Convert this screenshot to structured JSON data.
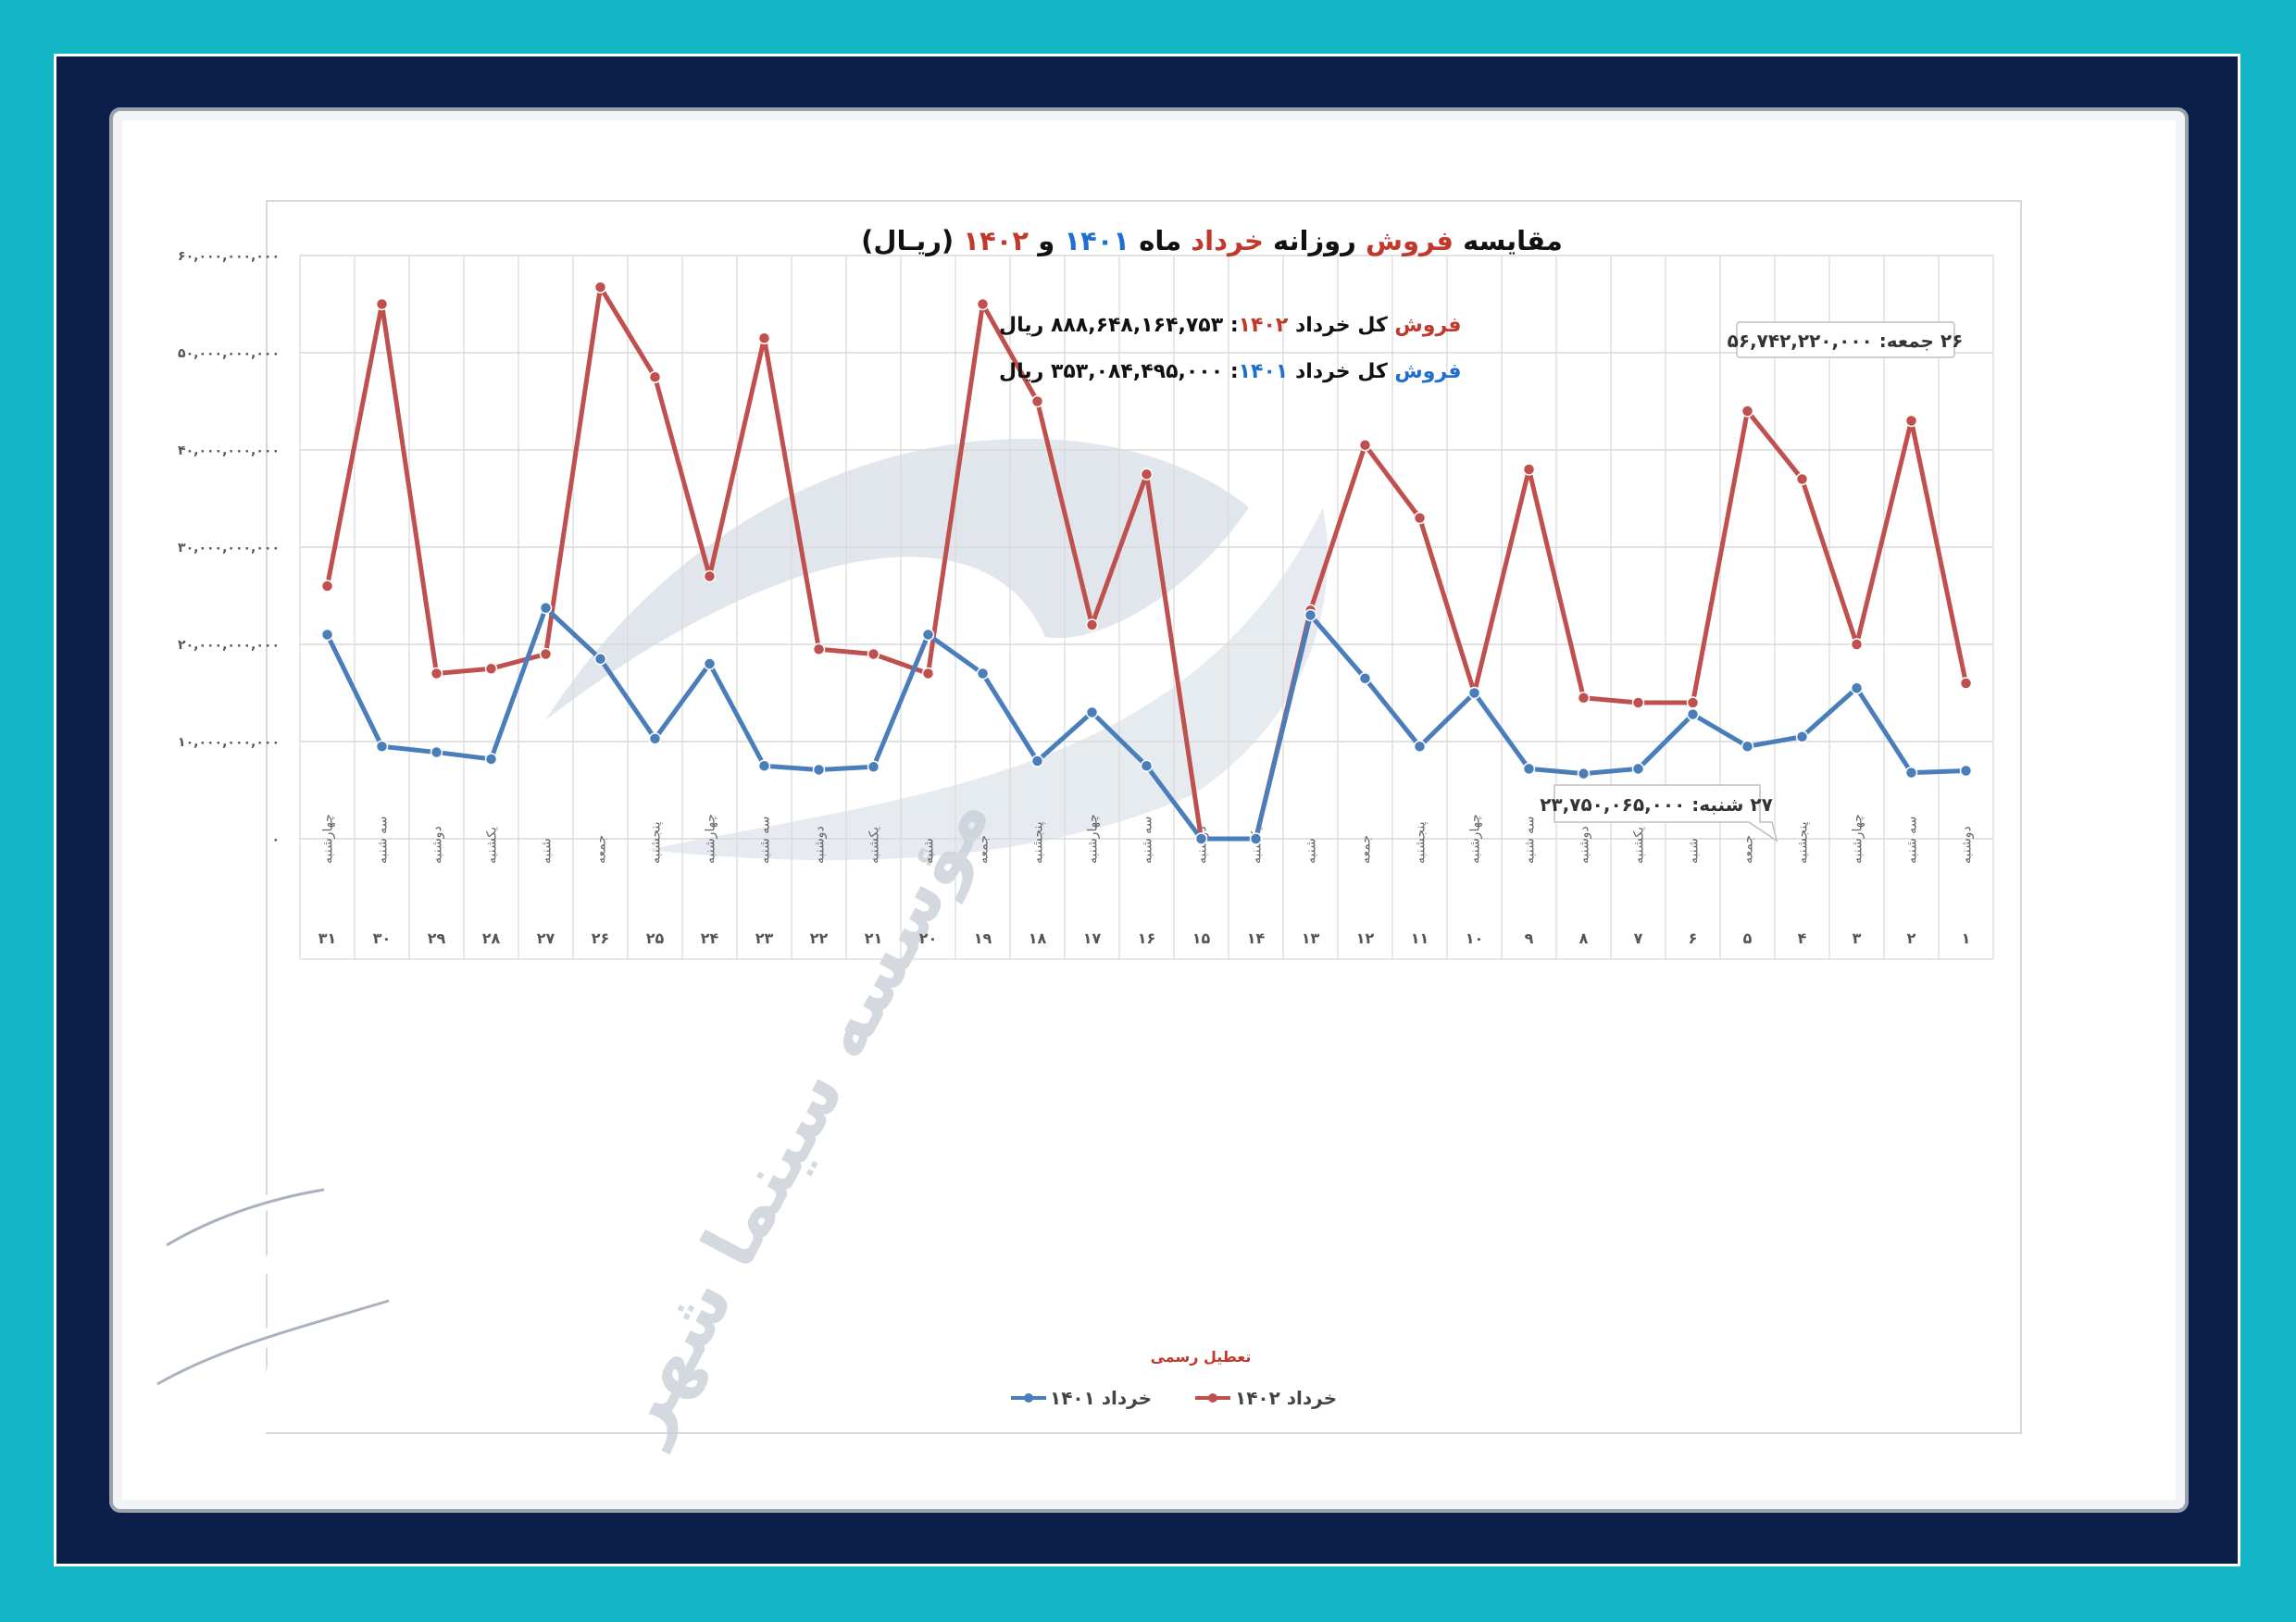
{
  "title": {
    "parts": [
      {
        "text": "مقایسه ",
        "color": "#111111"
      },
      {
        "text": "فروش",
        "color": "#c0392b"
      },
      {
        "text": " روزانه ",
        "color": "#111111"
      },
      {
        "text": "خرداد",
        "color": "#c0392b"
      },
      {
        "text": " ماه ",
        "color": "#111111"
      },
      {
        "text": "۱۴۰۱",
        "color": "#1f6fd1"
      },
      {
        "text": " و ",
        "color": "#111111"
      },
      {
        "text": "۱۴۰۲",
        "color": "#c0392b"
      },
      {
        "text": " (ریـال)",
        "color": "#111111"
      }
    ]
  },
  "totals": {
    "line1": {
      "w1": "فروش",
      "w2": " کل خرداد ",
      "year": "۱۴۰۲",
      "sep": ": ",
      "value": "۸۸۸,۶۴۸,۱۶۴,۷۵۳",
      "unit": " ریال"
    },
    "line2": {
      "w1": "فروش",
      "w2": " کل خرداد ",
      "year": "۱۴۰۱",
      "sep": ": ",
      "value": "۳۵۳,۰۸۴,۴۹۵,۰۰۰",
      "unit": " ریال"
    }
  },
  "callouts": [
    {
      "text": "۲۶ جمعه: ۵۶,۷۴۲,۲۲۰,۰۰۰"
    },
    {
      "text": "۲۷ شنبه: ۲۳,۷۵۰,۰۶۵,۰۰۰"
    }
  ],
  "holiday_label": "تعطیل رسمی",
  "watermark": "مؤسسه سینما شهر",
  "colors": {
    "series_1402": "#c0504d",
    "series_1401": "#4a7ebb",
    "grid": "#d9d9d9",
    "accent_red": "#c0392b",
    "accent_blue": "#1f6fd1"
  },
  "chart_data": {
    "type": "line",
    "y_tick_labels": [
      "۰",
      "۱۰,۰۰۰,۰۰۰,۰۰۰",
      "۲۰,۰۰۰,۰۰۰,۰۰۰",
      "۳۰,۰۰۰,۰۰۰,۰۰۰",
      "۴۰,۰۰۰,۰۰۰,۰۰۰",
      "۵۰,۰۰۰,۰۰۰,۰۰۰",
      "۶۰,۰۰۰,۰۰۰,۰۰۰"
    ],
    "ylim": [
      0,
      60000000000
    ],
    "grid": true,
    "legend_position": "bottom",
    "days": [
      "۱",
      "۲",
      "۳",
      "۴",
      "۵",
      "۶",
      "۷",
      "۸",
      "۹",
      "۱۰",
      "۱۱",
      "۱۲",
      "۱۳",
      "۱۴",
      "۱۵",
      "۱۶",
      "۱۷",
      "۱۸",
      "۱۹",
      "۲۰",
      "۲۱",
      "۲۲",
      "۲۳",
      "۲۴",
      "۲۵",
      "۲۶",
      "۲۷",
      "۲۸",
      "۲۹",
      "۳۰",
      "۳۱"
    ],
    "weekdays": [
      "دوشنبه",
      "سه شنبه",
      "چهارشنبه",
      "پنجشنبه",
      "جمعه",
      "شنبه",
      "یکشنبه",
      "دوشنبه",
      "سه شنبه",
      "چهارشنبه",
      "پنجشنبه",
      "جمعه",
      "شنبه",
      "یکشنبه",
      "دوشنبه",
      "سه شنبه",
      "چهارشنبه",
      "پنجشنبه",
      "جمعه",
      "شنبه",
      "یکشنبه",
      "دوشنبه",
      "سه شنبه",
      "چهارشنبه",
      "پنجشنبه",
      "جمعه",
      "شنبه",
      "یکشنبه",
      "دوشنبه",
      "سه شنبه",
      "چهارشنبه"
    ],
    "series": [
      {
        "name": "خرداد ۱۴۰۲",
        "color": "#c0504d",
        "values": [
          16000000000,
          43000000000,
          20000000000,
          37000000000,
          44000000000,
          14000000000,
          14000000000,
          14500000000,
          38000000000,
          15000000000,
          33000000000,
          40500000000,
          23500000000,
          0,
          0,
          37500000000,
          22000000000,
          45000000000,
          55000000000,
          17000000000,
          19000000000,
          19500000000,
          51500000000,
          27000000000,
          47500000000,
          56742220000,
          19000000000,
          17500000000,
          17000000000,
          55000000000,
          26000000000
        ]
      },
      {
        "name": "خرداد ۱۴۰۱",
        "color": "#4a7ebb",
        "values": [
          7000000000,
          6800000000,
          15500000000,
          10500000000,
          9500000000,
          12800000000,
          7200000000,
          6700000000,
          7200000000,
          15000000000,
          9500000000,
          16500000000,
          23000000000,
          0,
          0,
          7500000000,
          13000000000,
          8000000000,
          17000000000,
          21000000000,
          7400000000,
          7100000000,
          7500000000,
          18000000000,
          10300000000,
          18500000000,
          23750065000,
          8200000000,
          8900000000,
          9500000000,
          21000000000
        ]
      }
    ]
  }
}
